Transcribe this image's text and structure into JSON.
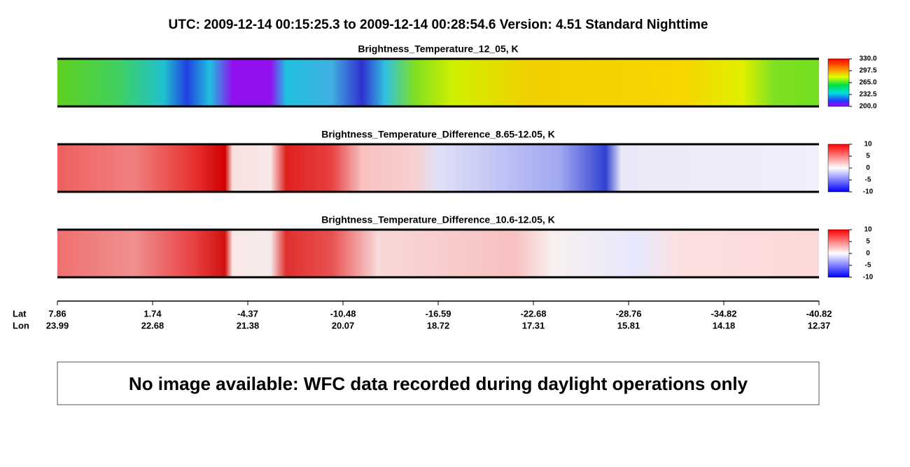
{
  "title": "UTC:  2009-12-14   00:15:25.3  to  2009-12-14   00:28:54.6    Version: 4.51  Standard Nighttime",
  "panels": [
    {
      "title": "Brightness_Temperature_12_05, K",
      "colorbar_ticks": [
        {
          "value": 330,
          "label": "330.0"
        },
        {
          "value": 297.5,
          "label": "297.5"
        },
        {
          "value": 265,
          "label": "265.0"
        },
        {
          "value": 232.5,
          "label": "232.5"
        },
        {
          "value": 200,
          "label": "200.0"
        }
      ]
    },
    {
      "title": "Brightness_Temperature_Difference_8.65-12.05, K",
      "colorbar_ticks": [
        10,
        5,
        0,
        -5,
        -10
      ]
    },
    {
      "title": "Brightness_Temperature_Difference_10.6-12.05, K",
      "colorbar_ticks": [
        10,
        5,
        0,
        -5,
        -10
      ]
    }
  ],
  "axis": {
    "lat_label": "Lat",
    "lon_label": "Lon",
    "lat": [
      7.86,
      1.74,
      -4.37,
      -10.48,
      -16.59,
      -22.68,
      -28.76,
      -34.82,
      -40.82
    ],
    "lon": [
      23.99,
      22.68,
      21.38,
      20.07,
      18.72,
      17.31,
      15.81,
      14.18,
      12.37
    ]
  },
  "message": "No image available: WFC data recorded during daylight operations only"
}
